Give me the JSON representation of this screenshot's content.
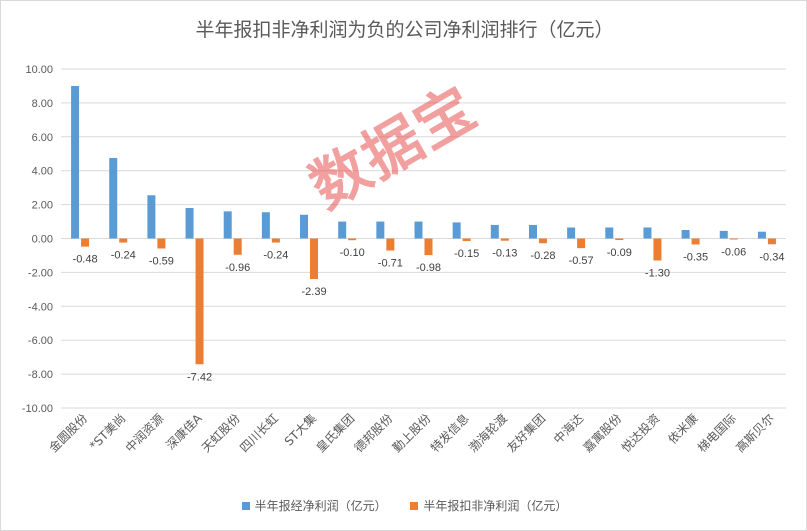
{
  "chart_data": {
    "type": "bar",
    "title": "半年报扣非净利润为负的公司净利润排行（亿元）",
    "categories": [
      "金圆股份",
      "*ST美尚",
      "中润资源",
      "深康佳A",
      "天虹股份",
      "四川长虹",
      "ST大集",
      "皇氏集团",
      "德邦股份",
      "勤上股份",
      "特发信息",
      "渤海轮渡",
      "友好集团",
      "中海达",
      "嘉寓股份",
      "悦达投资",
      "依米康",
      "梯电国际",
      "高斯贝尔"
    ],
    "series": [
      {
        "name": "半年报经净利润（亿元）",
        "color": "#5b9bd5",
        "values": [
          9.0,
          4.75,
          2.55,
          1.8,
          1.6,
          1.55,
          1.4,
          1.0,
          1.0,
          1.0,
          0.95,
          0.8,
          0.8,
          0.65,
          0.65,
          0.65,
          0.5,
          0.45,
          0.4
        ]
      },
      {
        "name": "半年报扣非净利润（亿元）",
        "color": "#ed7d31",
        "values": [
          -0.48,
          -0.24,
          -0.59,
          -7.42,
          -0.96,
          -0.24,
          -2.39,
          -0.1,
          -0.71,
          -0.98,
          -0.15,
          -0.13,
          -0.28,
          -0.57,
          -0.09,
          -1.3,
          -0.35,
          -0.06,
          -0.34
        ]
      }
    ],
    "ylim": [
      -10,
      10
    ],
    "yticks": [
      "10.00",
      "8.00",
      "6.00",
      "4.00",
      "2.00",
      "0.00",
      "-2.00",
      "-4.00",
      "-6.00",
      "-8.00",
      "-10.00"
    ],
    "grid": true,
    "legend": "bottom"
  },
  "watermark": "数据宝"
}
